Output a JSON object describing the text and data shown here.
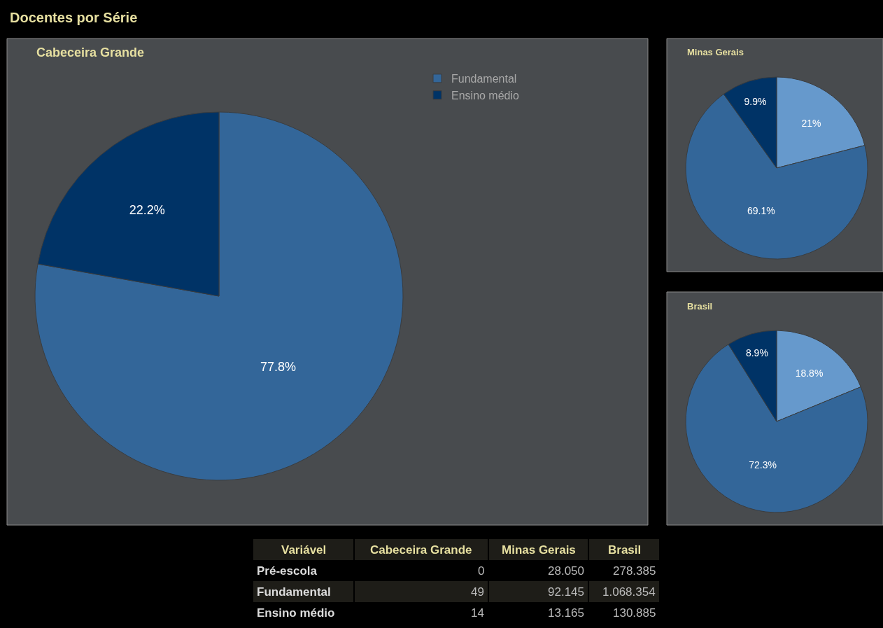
{
  "chart_data": [
    {
      "type": "other",
      "title": "Docentes por Série"
    },
    {
      "type": "pie",
      "title": "Cabeceira Grande",
      "categories": [
        "Fundamental",
        "Ensino médio"
      ],
      "values": [
        77.8,
        22.2
      ],
      "colors": [
        "#336699",
        "#003366"
      ],
      "value_labels": [
        "77.8%",
        "22.2%"
      ],
      "legend": "top right"
    },
    {
      "type": "pie",
      "title": "Minas Gerais",
      "categories": [
        null,
        null,
        null
      ],
      "values": [
        21,
        69.1,
        9.9
      ],
      "colors": [
        "#6699cc",
        "#336699",
        "#003366"
      ],
      "value_labels": [
        "21%",
        "69.1%",
        "9.9%"
      ]
    },
    {
      "type": "pie",
      "title": "Brasil",
      "categories": [
        null,
        null,
        null
      ],
      "values": [
        18.8,
        72.3,
        8.9
      ],
      "colors": [
        "#6699cc",
        "#336699",
        "#003366"
      ],
      "value_labels": [
        "18.8%",
        "72.3%",
        "8.9%"
      ]
    },
    {
      "type": "other",
      "annotations": [
        "Variável",
        "Cabeceira Grande",
        "Minas Gerais",
        "Brasil",
        "Pré-escola",
        "0",
        "28.050",
        "278.385",
        "Fundamental",
        "49",
        "92.145",
        "1.068.354",
        "Ensino médio",
        "14",
        "13.165",
        "130.885"
      ]
    }
  ]
}
